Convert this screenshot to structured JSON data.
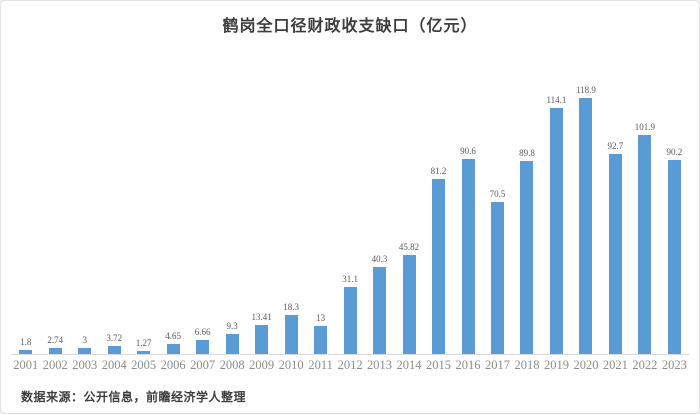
{
  "title": "鹤岗全口径财政收支缺口（亿元）",
  "source_note": "数据来源：公开信息，前瞻经济学人整理",
  "colors": {
    "bar": "#5b9bd5",
    "axis_line": "#d9d9d9",
    "title_text": "#3d3d3d",
    "tick_text": "#8c8c8c",
    "value_text": "#595959",
    "frame_border": "#e2e2e2"
  },
  "chart_data": {
    "type": "bar",
    "title": "鹤岗全口径财政收支缺口（亿元）",
    "xlabel": "",
    "ylabel": "",
    "categories": [
      "2001",
      "2002",
      "2003",
      "2004",
      "2005",
      "2006",
      "2007",
      "2008",
      "2009",
      "2010",
      "2011",
      "2012",
      "2013",
      "2014",
      "2015",
      "2016",
      "2017",
      "2018",
      "2019",
      "2020",
      "2021",
      "2022",
      "2023"
    ],
    "values": [
      1.8,
      2.74,
      3,
      3.72,
      1.27,
      4.65,
      6.66,
      9.3,
      13.41,
      18.3,
      13,
      31.1,
      40.3,
      45.82,
      81.2,
      90.6,
      70.5,
      89.8,
      114.1,
      118.9,
      92.7,
      101.9,
      90.2
    ],
    "value_labels": [
      "1.8",
      "2.74",
      "3",
      "3.72",
      "1.27",
      "4.65",
      "6.66",
      "9.3",
      "13.41",
      "18.3",
      "13",
      "31.1",
      "40.3",
      "45.82",
      "81.2",
      "90.6",
      "70.5",
      "89.8",
      "114.1",
      "118.9",
      "92.7",
      "101.9",
      "90.2"
    ],
    "ylim": [
      0,
      125
    ],
    "grid": false,
    "legend_position": "none",
    "data_labels": "above-bars"
  }
}
